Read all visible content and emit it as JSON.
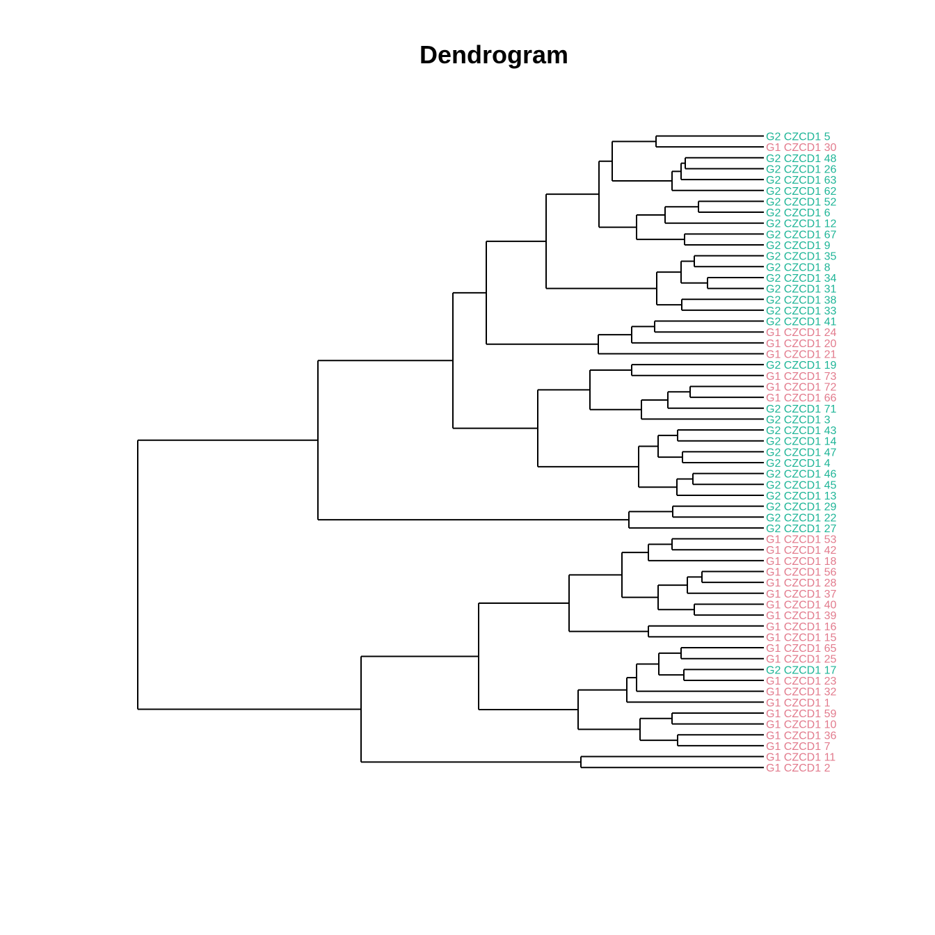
{
  "title": "Dendrogram",
  "colors": {
    "G1": "#e27b8d",
    "G2": "#1fb597",
    "branch": "#000000"
  },
  "leaves": [
    {
      "label": "G2 CZCD1 5",
      "group": "G2"
    },
    {
      "label": "G1 CZCD1 30",
      "group": "G1"
    },
    {
      "label": "G2 CZCD1 48",
      "group": "G2"
    },
    {
      "label": "G2 CZCD1 26",
      "group": "G2"
    },
    {
      "label": "G2 CZCD1 63",
      "group": "G2"
    },
    {
      "label": "G2 CZCD1 62",
      "group": "G2"
    },
    {
      "label": "G2 CZCD1 52",
      "group": "G2"
    },
    {
      "label": "G2 CZCD1 6",
      "group": "G2"
    },
    {
      "label": "G2 CZCD1 12",
      "group": "G2"
    },
    {
      "label": "G2 CZCD1 67",
      "group": "G2"
    },
    {
      "label": "G2 CZCD1 9",
      "group": "G2"
    },
    {
      "label": "G2 CZCD1 35",
      "group": "G2"
    },
    {
      "label": "G2 CZCD1 8",
      "group": "G2"
    },
    {
      "label": "G2 CZCD1 34",
      "group": "G2"
    },
    {
      "label": "G2 CZCD1 31",
      "group": "G2"
    },
    {
      "label": "G2 CZCD1 38",
      "group": "G2"
    },
    {
      "label": "G2 CZCD1 33",
      "group": "G2"
    },
    {
      "label": "G2 CZCD1 41",
      "group": "G2"
    },
    {
      "label": "G1 CZCD1 24",
      "group": "G1"
    },
    {
      "label": "G1 CZCD1 20",
      "group": "G1"
    },
    {
      "label": "G1 CZCD1 21",
      "group": "G1"
    },
    {
      "label": "G2 CZCD1 19",
      "group": "G2"
    },
    {
      "label": "G1 CZCD1 73",
      "group": "G1"
    },
    {
      "label": "G1 CZCD1 72",
      "group": "G1"
    },
    {
      "label": "G1 CZCD1 66",
      "group": "G1"
    },
    {
      "label": "G2 CZCD1 71",
      "group": "G2"
    },
    {
      "label": "G2 CZCD1 3",
      "group": "G2"
    },
    {
      "label": "G2 CZCD1 43",
      "group": "G2"
    },
    {
      "label": "G2 CZCD1 14",
      "group": "G2"
    },
    {
      "label": "G2 CZCD1 47",
      "group": "G2"
    },
    {
      "label": "G2 CZCD1 4",
      "group": "G2"
    },
    {
      "label": "G2 CZCD1 46",
      "group": "G2"
    },
    {
      "label": "G2 CZCD1 45",
      "group": "G2"
    },
    {
      "label": "G2 CZCD1 13",
      "group": "G2"
    },
    {
      "label": "G2 CZCD1 29",
      "group": "G2"
    },
    {
      "label": "G2 CZCD1 22",
      "group": "G2"
    },
    {
      "label": "G2 CZCD1 27",
      "group": "G2"
    },
    {
      "label": "G1 CZCD1 53",
      "group": "G1"
    },
    {
      "label": "G1 CZCD1 42",
      "group": "G1"
    },
    {
      "label": "G1 CZCD1 18",
      "group": "G1"
    },
    {
      "label": "G1 CZCD1 56",
      "group": "G1"
    },
    {
      "label": "G1 CZCD1 28",
      "group": "G1"
    },
    {
      "label": "G1 CZCD1 37",
      "group": "G1"
    },
    {
      "label": "G1 CZCD1 40",
      "group": "G1"
    },
    {
      "label": "G1 CZCD1 39",
      "group": "G1"
    },
    {
      "label": "G1 CZCD1 16",
      "group": "G1"
    },
    {
      "label": "G1 CZCD1 15",
      "group": "G1"
    },
    {
      "label": "G1 CZCD1 65",
      "group": "G1"
    },
    {
      "label": "G1 CZCD1 25",
      "group": "G1"
    },
    {
      "label": "G2 CZCD1 17",
      "group": "G2"
    },
    {
      "label": "G1 CZCD1 23",
      "group": "G1"
    },
    {
      "label": "G1 CZCD1 32",
      "group": "G1"
    },
    {
      "label": "G1 CZCD1 1",
      "group": "G1"
    },
    {
      "label": "G1 CZCD1 59",
      "group": "G1"
    },
    {
      "label": "G1 CZCD1 10",
      "group": "G1"
    },
    {
      "label": "G1 CZCD1 36",
      "group": "G1"
    },
    {
      "label": "G1 CZCD1 7",
      "group": "G1"
    },
    {
      "label": "G1 CZCD1 11",
      "group": "G1"
    },
    {
      "label": "G1 CZCD1 2",
      "group": "G1"
    }
  ]
}
